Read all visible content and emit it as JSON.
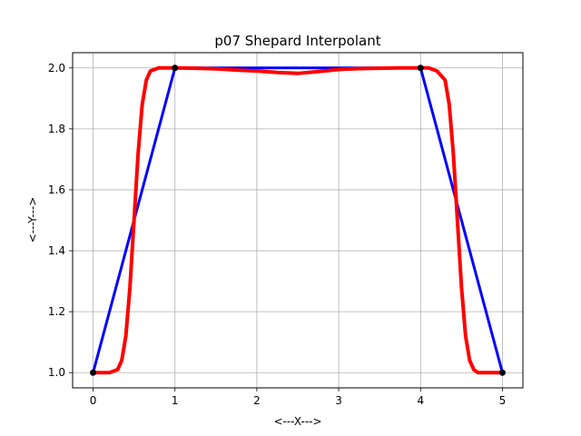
{
  "chart_data": {
    "type": "line",
    "title": "p07 Shepard Interpolant",
    "xlabel": "<---X--->",
    "ylabel": "<---Y--->",
    "xlim": [
      -0.25,
      5.25
    ],
    "ylim": [
      0.95,
      2.05
    ],
    "xticks": [
      0,
      1,
      2,
      3,
      4,
      5
    ],
    "xtick_labels": [
      "0",
      "1",
      "2",
      "3",
      "4",
      "5"
    ],
    "yticks": [
      1.0,
      1.2,
      1.4,
      1.6,
      1.8,
      2.0
    ],
    "ytick_labels": [
      "1.0",
      "1.2",
      "1.4",
      "1.6",
      "1.8",
      "2.0"
    ],
    "grid": true,
    "series": [
      {
        "style": "piecewise-linear",
        "color": "#0000ff",
        "x": [
          0,
          1,
          4,
          5
        ],
        "y": [
          1.0,
          2.0,
          2.0,
          1.0
        ]
      },
      {
        "style": "interpolant",
        "color": "#ff0000",
        "x": [
          0,
          0.1,
          0.2,
          0.3,
          0.35,
          0.4,
          0.45,
          0.5,
          0.55,
          0.6,
          0.65,
          0.7,
          0.8,
          0.9,
          1.0,
          1.25,
          1.5,
          1.75,
          2.0,
          2.25,
          2.5,
          2.75,
          3.0,
          3.25,
          3.5,
          3.75,
          4.0,
          4.1,
          4.2,
          4.3,
          4.35,
          4.4,
          4.45,
          4.5,
          4.55,
          4.6,
          4.65,
          4.7,
          4.8,
          4.9,
          5.0
        ],
        "y": [
          1.0,
          1.0,
          1.0,
          1.01,
          1.04,
          1.12,
          1.28,
          1.5,
          1.72,
          1.88,
          1.96,
          1.99,
          2.0,
          2.0,
          2.0,
          1.999,
          1.997,
          1.993,
          1.99,
          1.985,
          1.982,
          1.988,
          1.995,
          1.998,
          1.999,
          2.0,
          2.0,
          2.0,
          1.99,
          1.96,
          1.88,
          1.72,
          1.5,
          1.28,
          1.12,
          1.04,
          1.01,
          1.0,
          1.0,
          1.0,
          1.0
        ]
      },
      {
        "style": "data-points",
        "color": "#000000",
        "x": [
          0,
          1,
          4,
          5
        ],
        "y": [
          1.0,
          2.0,
          2.0,
          1.0
        ]
      }
    ]
  }
}
